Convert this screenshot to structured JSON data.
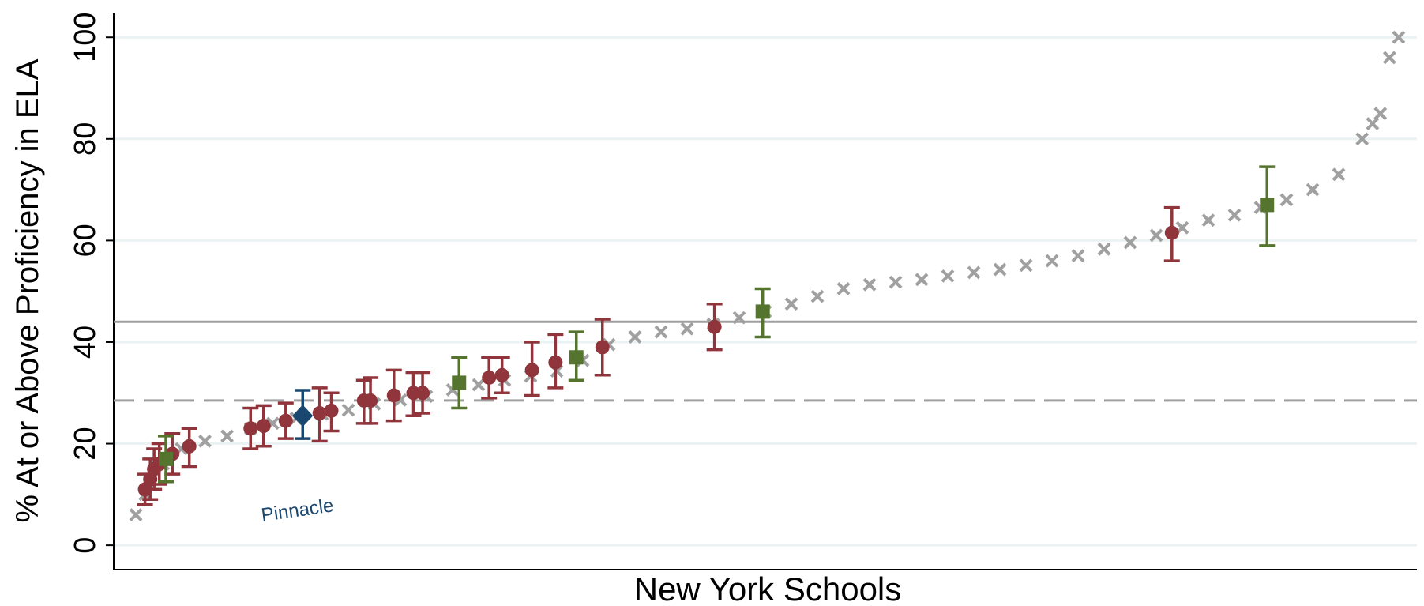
{
  "chart_data": {
    "type": "scatter",
    "ylabel": "% At or Above Proficiency in ELA",
    "xlabel": "New York Schools",
    "annotation": "Pinnacle",
    "xlim": [
      0,
      100
    ],
    "ylim": [
      -4.8,
      104.7
    ],
    "yticks": [
      0,
      20,
      40,
      60,
      80,
      100
    ],
    "grid": true,
    "reference_lines": [
      {
        "value": 44,
        "style": "solid",
        "color": "#a0a0a0"
      },
      {
        "value": 28.5,
        "style": "dashed",
        "color": "#a0a0a0"
      }
    ],
    "series": [
      {
        "marker": "x",
        "color": "#a0a0a0",
        "x": [
          1.7,
          2.4,
          3.8,
          5.2,
          7,
          8.7,
          10.5,
          12.2,
          14,
          16,
          18,
          20,
          22,
          24,
          26,
          28,
          30,
          32,
          34,
          36,
          38,
          40,
          42,
          44,
          46,
          48,
          50,
          52,
          54,
          56,
          58,
          60,
          62,
          64,
          66,
          68,
          70,
          72,
          74,
          76,
          78,
          80,
          82,
          84,
          86,
          88,
          90,
          92,
          94,
          95.8,
          96.6,
          97.2,
          97.9,
          98.6
        ],
        "values": [
          6,
          10,
          16,
          19,
          20.5,
          21.5,
          23,
          24,
          25,
          25.8,
          26.6,
          27.8,
          28.6,
          29.3,
          30.6,
          31.6,
          32.5,
          33.3,
          34.3,
          36.4,
          39.5,
          41,
          42,
          42.6,
          43.5,
          44.8,
          46,
          47.5,
          49,
          50.5,
          51.3,
          51.8,
          52.3,
          53,
          53.7,
          54.3,
          55.1,
          56,
          57,
          58.3,
          59.6,
          61,
          62.5,
          64,
          65,
          66.5,
          68,
          70,
          73,
          80,
          83,
          85,
          96,
          100
        ]
      },
      {
        "marker": "circle",
        "color": "#90353b",
        "x": [
          2.4,
          2.8,
          3.1,
          3.5,
          4.5,
          5.8,
          10.5,
          11.5,
          13.2,
          15.8,
          16.7,
          19.2,
          19.7,
          21.5,
          23.0,
          23.7,
          28.8,
          29.8,
          32.1,
          33.9,
          37.5,
          46.1,
          81.2
        ],
        "values": [
          11,
          13,
          15,
          16,
          18,
          19.5,
          23,
          23.5,
          24.5,
          26,
          26.5,
          28.5,
          28.5,
          29.5,
          30,
          30,
          33,
          33.5,
          34.5,
          36,
          39,
          43,
          61.5
        ],
        "lower": [
          8,
          9,
          11,
          12,
          14,
          15.5,
          19,
          19.5,
          21,
          20.5,
          22.5,
          24,
          24,
          24.5,
          25.5,
          26,
          29,
          30,
          29.5,
          31,
          33.5,
          38.5,
          56
        ],
        "upper": [
          14,
          17,
          19,
          20,
          22,
          23,
          27,
          27.5,
          28,
          31,
          30,
          32.5,
          33,
          34.5,
          34,
          34,
          37,
          37,
          40,
          41.5,
          44.5,
          47.5,
          66.5
        ]
      },
      {
        "marker": "square",
        "color": "#55752f",
        "x": [
          4.0,
          26.5,
          35.5,
          49.8,
          88.5
        ],
        "values": [
          17,
          32,
          37,
          46,
          67
        ],
        "lower": [
          12.5,
          27,
          32.5,
          41,
          59
        ],
        "upper": [
          21.5,
          37,
          42,
          50.5,
          74.5
        ]
      },
      {
        "marker": "diamond",
        "color": "#1a476f",
        "x": [
          14.5
        ],
        "values": [
          25.5
        ],
        "lower": [
          21
        ],
        "upper": [
          30.5
        ]
      }
    ]
  }
}
